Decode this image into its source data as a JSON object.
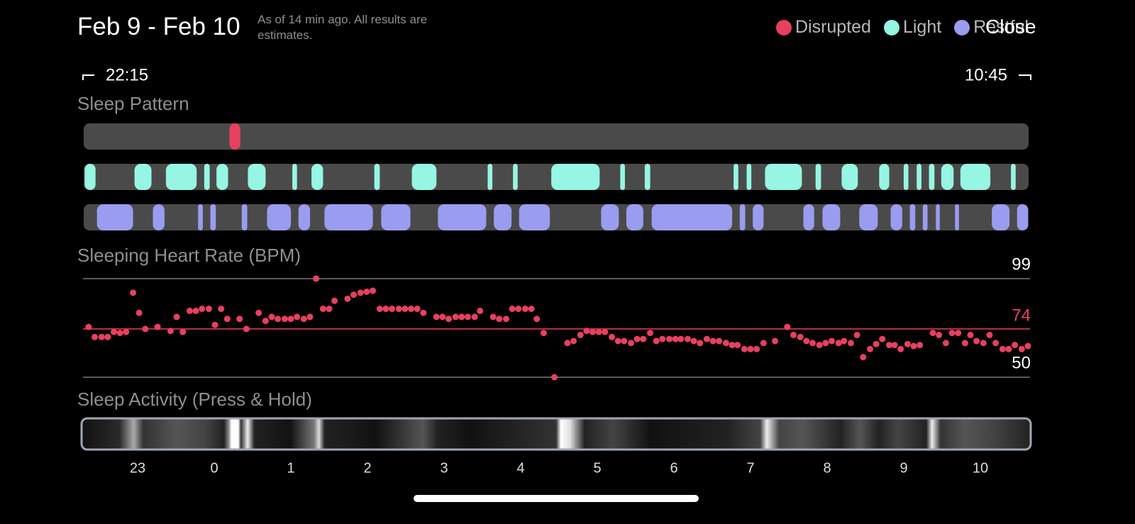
{
  "header": {
    "title": "Feb 9 - Feb 10",
    "note": "As of 14 min ago. All results are estimates.",
    "close": "Close",
    "start_time": "22:15",
    "end_time": "10:45"
  },
  "chart_data": [
    {
      "type": "timeline",
      "title": "Sleep Pattern",
      "xlim": [
        -1.75,
        10.75
      ],
      "stages": [
        {
          "name": "Disrupted",
          "color": "#e8405f",
          "segments": [
            [
              0.19,
              0.35
            ]
          ]
        },
        {
          "name": "Light",
          "color": "#96f5e3",
          "segments": [
            [
              -1.7,
              -1.54
            ],
            [
              -1.05,
              -0.81
            ],
            [
              -0.64,
              -0.22
            ],
            [
              -0.14,
              -0.05
            ],
            [
              0.02,
              0.19
            ],
            [
              0.43,
              0.68
            ],
            [
              1.01,
              1.09
            ],
            [
              1.26,
              1.43
            ],
            [
              2.08,
              2.17
            ],
            [
              2.57,
              2.91
            ],
            [
              3.56,
              3.64
            ],
            [
              3.89,
              3.97
            ],
            [
              4.39,
              5.04
            ],
            [
              5.29,
              5.37
            ],
            [
              5.61,
              5.7
            ],
            [
              6.77,
              6.85
            ],
            [
              6.94,
              7.02
            ],
            [
              7.18,
              7.68
            ],
            [
              7.84,
              7.93
            ],
            [
              8.18,
              8.41
            ],
            [
              8.67,
              8.82
            ],
            [
              8.99,
              9.07
            ],
            [
              9.16,
              9.24
            ],
            [
              9.32,
              9.41
            ],
            [
              9.48,
              9.66
            ],
            [
              9.73,
              10.14
            ],
            [
              10.39,
              10.47
            ]
          ]
        },
        {
          "name": "Restful",
          "color": "#9a9cf0",
          "segments": [
            [
              -1.54,
              -1.05
            ],
            [
              -0.81,
              -0.64
            ],
            [
              -0.22,
              -0.14
            ],
            [
              -0.06,
              0.03
            ],
            [
              0.35,
              0.44
            ],
            [
              0.68,
              1.01
            ],
            [
              1.09,
              1.26
            ],
            [
              1.43,
              2.08
            ],
            [
              2.17,
              2.57
            ],
            [
              2.91,
              3.56
            ],
            [
              3.64,
              3.89
            ],
            [
              3.97,
              4.39
            ],
            [
              5.04,
              5.29
            ],
            [
              5.37,
              5.61
            ],
            [
              5.7,
              6.77
            ],
            [
              6.85,
              6.94
            ],
            [
              7.02,
              7.18
            ],
            [
              7.68,
              7.84
            ],
            [
              7.93,
              8.18
            ],
            [
              8.41,
              8.67
            ],
            [
              8.82,
              8.99
            ],
            [
              9.07,
              9.16
            ],
            [
              9.24,
              9.32
            ],
            [
              9.41,
              9.48
            ],
            [
              9.66,
              9.73
            ],
            [
              10.14,
              10.39
            ],
            [
              10.47,
              10.63
            ]
          ]
        }
      ]
    },
    {
      "type": "scatter",
      "title": "Sleeping Heart Rate (BPM)",
      "xlim": [
        -1.75,
        10.75
      ],
      "ylim": [
        50,
        99
      ],
      "yticks": [
        50,
        99
      ],
      "reference_lines": [
        {
          "value": 74,
          "color": "#e8405f"
        }
      ],
      "color": "#e8405f",
      "x": [
        -1.64,
        -1.56,
        -1.47,
        -1.39,
        -1.31,
        -1.23,
        -1.15,
        -1.06,
        -0.98,
        -0.9,
        -0.74,
        -0.57,
        -0.49,
        -0.41,
        -0.32,
        -0.24,
        -0.16,
        -0.07,
        0.01,
        0.09,
        0.17,
        0.33,
        0.42,
        0.58,
        0.67,
        0.75,
        0.83,
        0.92,
        1.0,
        1.08,
        1.17,
        1.25,
        1.33,
        1.42,
        1.5,
        1.57,
        1.74,
        1.82,
        1.91,
        1.99,
        2.07,
        2.16,
        2.24,
        2.32,
        2.41,
        2.49,
        2.57,
        2.65,
        2.73,
        2.9,
        2.98,
        3.06,
        3.15,
        3.23,
        3.31,
        3.4,
        3.47,
        3.64,
        3.72,
        3.81,
        3.89,
        3.97,
        4.06,
        4.14,
        4.21,
        4.3,
        4.44,
        4.61,
        4.69,
        4.78,
        4.86,
        4.94,
        5.02,
        5.1,
        5.19,
        5.27,
        5.35,
        5.44,
        5.52,
        5.6,
        5.69,
        5.77,
        5.85,
        5.94,
        6.02,
        6.09,
        6.18,
        6.26,
        6.34,
        6.43,
        6.51,
        6.59,
        6.68,
        6.76,
        6.83,
        6.92,
        7.0,
        7.08,
        7.17,
        7.32,
        7.48,
        7.56,
        7.65,
        7.73,
        7.81,
        7.9,
        7.98,
        8.06,
        8.15,
        8.22,
        8.31,
        8.39,
        8.47,
        8.56,
        8.64,
        8.72,
        8.81,
        8.88,
        8.96,
        9.05,
        9.13,
        9.21,
        9.38,
        9.46,
        9.55,
        9.63,
        9.71,
        9.8,
        9.87,
        9.95,
        10.04,
        10.12,
        10.2,
        10.29,
        10.37,
        10.45,
        10.54,
        10.62
      ],
      "values": [
        75,
        70,
        70,
        70,
        72.5,
        72,
        72.5,
        92,
        82,
        74,
        75,
        73,
        80,
        72.5,
        83,
        83,
        84,
        84,
        76,
        84,
        79,
        79,
        74,
        82,
        78,
        80,
        79,
        79,
        79,
        80,
        79,
        80,
        99,
        84,
        84,
        88,
        89,
        91,
        92,
        92.5,
        93,
        84,
        84,
        84,
        84,
        84,
        84,
        84,
        82,
        80,
        80,
        79,
        80,
        80,
        80,
        80,
        83,
        80,
        79,
        79,
        84,
        84,
        84,
        84,
        79,
        72,
        50,
        67,
        68,
        71,
        73,
        72.5,
        72.5,
        72.5,
        70,
        68,
        68,
        67,
        69,
        69,
        72,
        68,
        69,
        69,
        69,
        69,
        69,
        68,
        67,
        69,
        68,
        68,
        67,
        66,
        66,
        64,
        64,
        64,
        67,
        68,
        75,
        71,
        70,
        68,
        67,
        66,
        67,
        68,
        67,
        68,
        67,
        71,
        60,
        64,
        66.5,
        69,
        66,
        66,
        64,
        66.5,
        65.5,
        66,
        72,
        71,
        67,
        72,
        72,
        67,
        71,
        68,
        67,
        71,
        67,
        64,
        64,
        66,
        64,
        65.5
      ]
    },
    {
      "type": "strip",
      "title": "Sleep Activity (Press & Hold)",
      "xlim": [
        -1.75,
        10.75
      ],
      "xticks": [
        {
          "value": -1,
          "label": "23"
        },
        0,
        1,
        2,
        3,
        4,
        5,
        6,
        7,
        8,
        9,
        10
      ]
    }
  ]
}
